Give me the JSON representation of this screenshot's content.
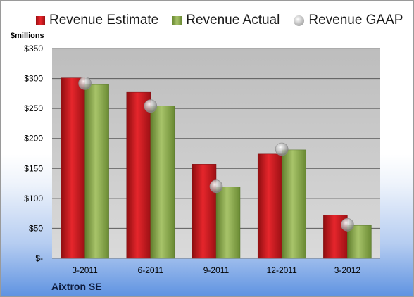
{
  "legend": {
    "estimate": "Revenue Estimate",
    "actual": "Revenue Actual",
    "gaap": "Revenue GAAP"
  },
  "units_label": "$millions",
  "company": "Aixtron SE",
  "colors": {
    "estimate": "#d41d22",
    "actual": "#8fab52",
    "gaap": "#b8b8b8",
    "plot_bg": "#c8c8c8"
  },
  "chart_data": {
    "type": "bar",
    "categories": [
      "3-2011",
      "6-2011",
      "9-2011",
      "12-2011",
      "3-2012"
    ],
    "series": [
      {
        "name": "Revenue Estimate",
        "values": [
          301,
          277,
          157,
          174,
          72
        ]
      },
      {
        "name": "Revenue Actual",
        "values": [
          290,
          254,
          119,
          181,
          55
        ]
      },
      {
        "name": "Revenue GAAP",
        "values": [
          292,
          254,
          120,
          182,
          56
        ]
      }
    ],
    "y_ticks": [
      0,
      50,
      100,
      150,
      200,
      250,
      300,
      350
    ],
    "y_tick_labels": [
      "$-",
      "$50",
      "$100",
      "$150",
      "$200",
      "$250",
      "$300",
      "$350"
    ],
    "ylabel": "$millions",
    "ylim": [
      0,
      350
    ],
    "grid": true,
    "legend_position": "top"
  }
}
